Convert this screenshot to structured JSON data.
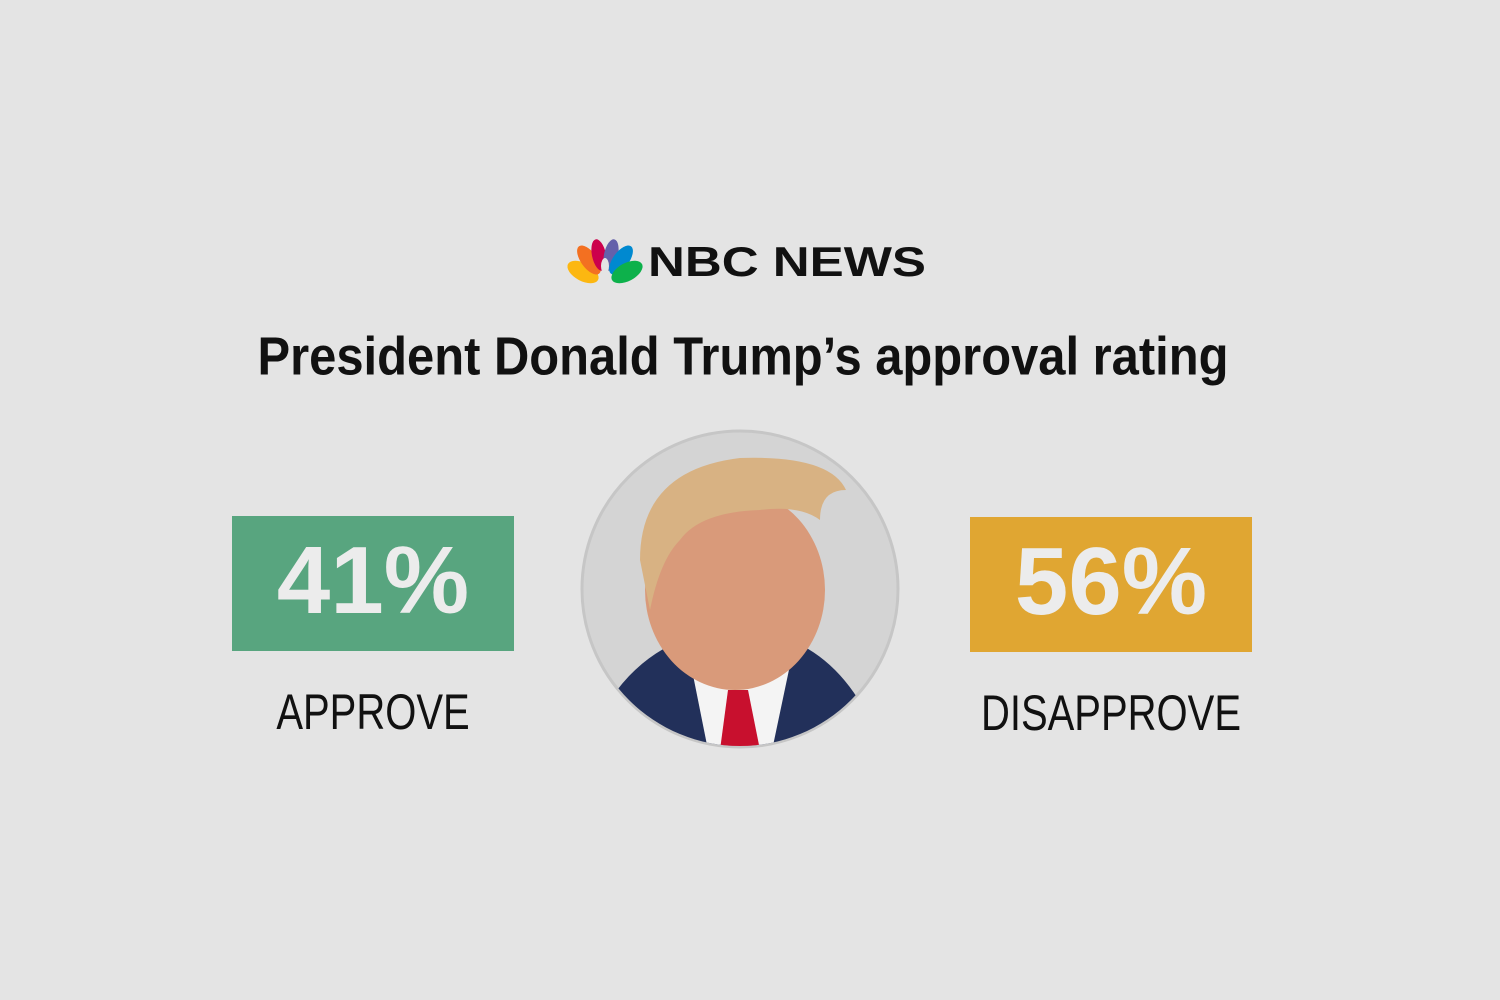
{
  "brand": "NBC NEWS",
  "title": "President Donald Trump’s approval rating",
  "stats": [
    {
      "value": "41%",
      "label": "APPROVE",
      "color": "#58a57f"
    },
    {
      "value": "56%",
      "label": "DISAPPROVE",
      "color": "#e0a632"
    }
  ]
}
